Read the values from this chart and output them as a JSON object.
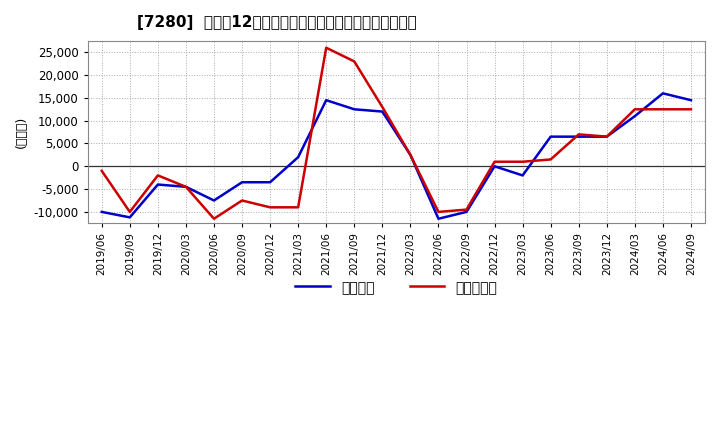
{
  "title": "[7280]  利益の12か月移動合計の対前年同期増減額の推移",
  "ylabel": "(百万円)",
  "ylim": [
    -12500,
    27500
  ],
  "yticks": [
    -10000,
    -5000,
    0,
    5000,
    10000,
    15000,
    20000,
    25000
  ],
  "legend_labels": [
    "経常利益",
    "当期純利益"
  ],
  "line_colors": [
    "#0000cc",
    "#cc0000"
  ],
  "bg_color": "#ffffff",
  "grid_color": "#aaaaaa",
  "all_dates": [
    "2019/06",
    "2019/09",
    "2019/12",
    "2020/03",
    "2020/06",
    "2020/09",
    "2020/12",
    "2021/03",
    "2021/06",
    "2021/09",
    "2021/12",
    "2022/03",
    "2022/06",
    "2022/09",
    "2022/12",
    "2023/03",
    "2023/06",
    "2023/09",
    "2023/12",
    "2024/03",
    "2024/06",
    "2024/09"
  ],
  "values_operating": [
    -10000,
    -11200,
    -4000,
    -4500,
    -7500,
    -3500,
    -3500,
    2000,
    14500,
    12500,
    12000,
    2500,
    -11500,
    -10000,
    0,
    -2000,
    6500,
    6500,
    6500,
    11000,
    16000,
    14500
  ],
  "values_net": [
    -1000,
    -10000,
    -2000,
    -4500,
    -11500,
    -7500,
    -9000,
    -9000,
    26000,
    23000,
    13000,
    2500,
    -10000,
    -9500,
    1000,
    1000,
    1500,
    7000,
    6500,
    12500,
    12500,
    12500
  ]
}
